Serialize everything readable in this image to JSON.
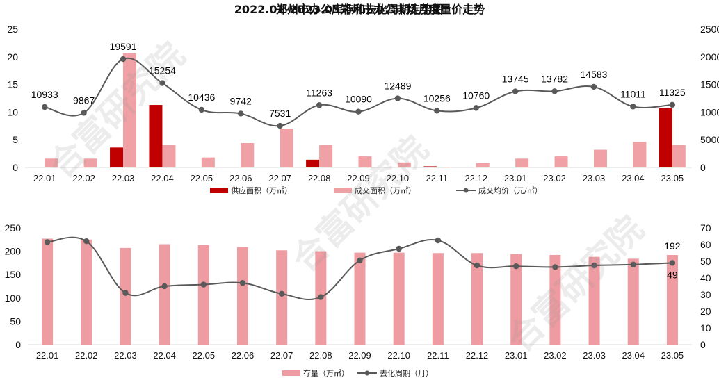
{
  "chart_data": [
    {
      "type": "bar",
      "title": "2022.01-2023.05郑州市办公市场月度量价走势",
      "categories": [
        "22.01",
        "22.02",
        "22.03",
        "22.04",
        "22.05",
        "22.06",
        "22.07",
        "22.08",
        "22.09",
        "22.10",
        "22.11",
        "22.12",
        "23.01",
        "23.02",
        "23.03",
        "23.04",
        "23.05"
      ],
      "y_left": {
        "ticks": [
          "0",
          "5",
          "10",
          "15",
          "20",
          "25"
        ],
        "ylim": [
          0,
          25
        ]
      },
      "y_right": {
        "ticks": [
          "0",
          "5000",
          "10000",
          "15000",
          "20000",
          "25000"
        ],
        "ylim": [
          0,
          25000
        ]
      },
      "series": [
        {
          "name": "供应面积（万㎡）",
          "kind": "bar",
          "axis": "left",
          "color": "#c00000",
          "values": [
            0,
            0,
            3.6,
            11.3,
            0,
            0,
            0,
            1.4,
            0,
            0,
            0.2,
            0,
            0,
            0,
            0,
            0,
            10.7
          ]
        },
        {
          "name": "成交面积（万㎡）",
          "kind": "bar",
          "axis": "left",
          "color": "#f0a1a5",
          "values": [
            1.6,
            1.6,
            20.6,
            4.1,
            1.8,
            4.4,
            7.0,
            4.1,
            2.0,
            0.9,
            0.1,
            0.8,
            1.6,
            2.0,
            3.2,
            4.6,
            4.1
          ]
        },
        {
          "name": "成交均价（元/㎡）",
          "kind": "line",
          "axis": "right",
          "color": "#595959",
          "values": [
            10933,
            9867,
            19591,
            15254,
            10436,
            9742,
            7531,
            11263,
            10090,
            12489,
            10256,
            10760,
            13745,
            13782,
            14583,
            11011,
            11325
          ],
          "labels": [
            "10933",
            "9867",
            "19591",
            "15254",
            "10436",
            "9742",
            "7531",
            "11263",
            "10090",
            "12489",
            "10256",
            "10760",
            "13745",
            "13782",
            "14583",
            "11011",
            "11325"
          ]
        }
      ],
      "legend_position": "bottom",
      "grid": false
    },
    {
      "type": "bar",
      "title": "郑州市办公库存和去化周期走势图",
      "categories": [
        "22.01",
        "22.02",
        "22.03",
        "22.04",
        "22.05",
        "22.06",
        "22.07",
        "22.08",
        "22.09",
        "22.10",
        "22.11",
        "22.12",
        "23.01",
        "23.02",
        "23.03",
        "23.04",
        "23.05"
      ],
      "y_left": {
        "ticks": [
          "0",
          "50",
          "100",
          "150",
          "200",
          "250"
        ],
        "ylim": [
          0,
          250
        ]
      },
      "y_right": {
        "ticks": [
          "0",
          "10",
          "20",
          "30",
          "40",
          "50",
          "60",
          "70"
        ],
        "ylim": [
          0,
          70
        ]
      },
      "series": [
        {
          "name": "存量（万㎡）",
          "kind": "bar",
          "axis": "left",
          "color": "#ee9ca1",
          "values": [
            227,
            225,
            207,
            215,
            213,
            209,
            202,
            200,
            197,
            197,
            196,
            196,
            194,
            192,
            188,
            184,
            192
          ],
          "labels": [
            "",
            "",
            "",
            "",
            "",
            "",
            "",
            "",
            "",
            "",
            "",
            "",
            "",
            "",
            "",
            "",
            "192"
          ]
        },
        {
          "name": "去化周期（月）",
          "kind": "line",
          "axis": "right",
          "color": "#595959",
          "values": [
            61.5,
            62,
            31,
            35,
            36,
            37,
            30.5,
            28.5,
            50.5,
            57.5,
            62.5,
            47.5,
            47,
            46.5,
            47.5,
            48,
            49
          ],
          "labels": [
            "",
            "",
            "",
            "",
            "",
            "",
            "",
            "",
            "",
            "",
            "",
            "",
            "",
            "",
            "",
            "",
            "49"
          ]
        }
      ],
      "legend_position": "bottom",
      "grid": false
    }
  ],
  "watermark": "合富研究院"
}
